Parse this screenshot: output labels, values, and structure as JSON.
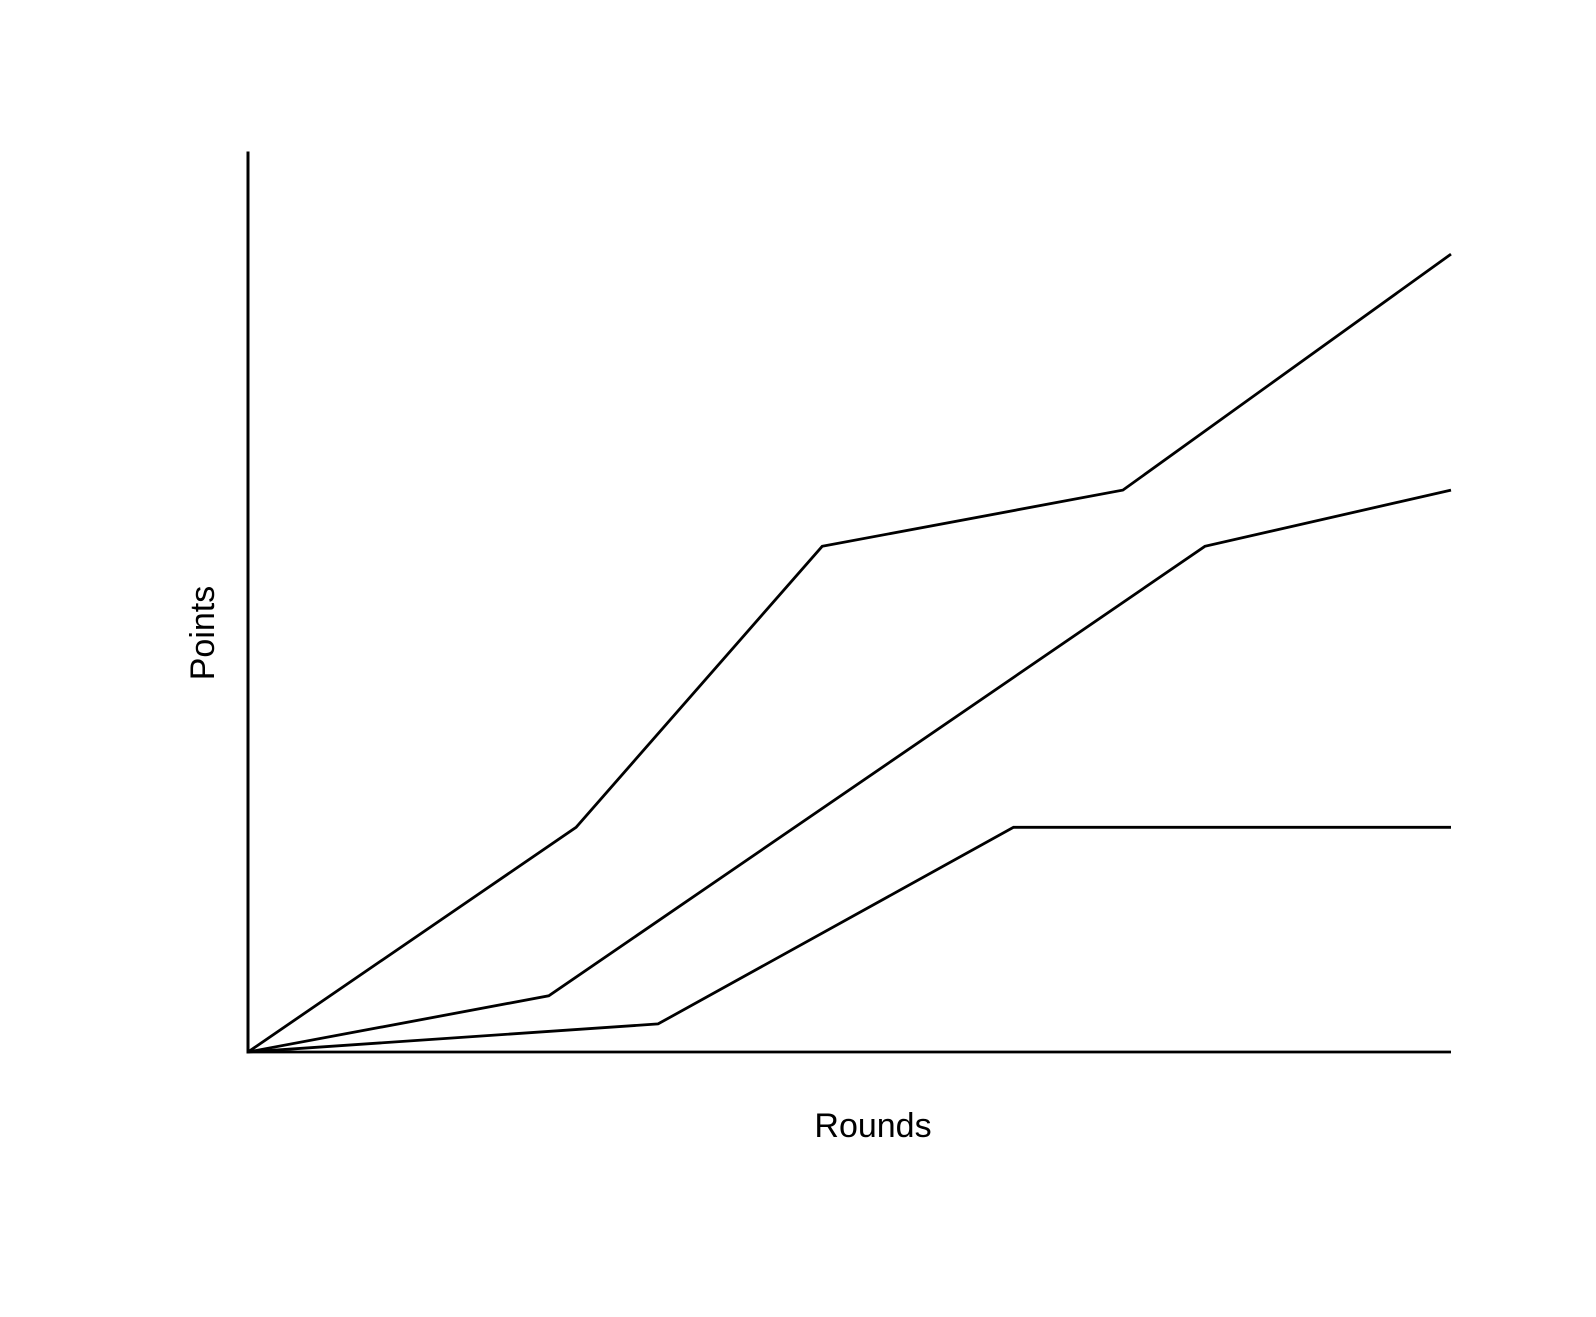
{
  "chart_data": {
    "type": "line",
    "xlabel": "Rounds",
    "ylabel": "Points",
    "xlim": [
      0,
      22
    ],
    "ylim": [
      0,
      16
    ],
    "x_ticks_shown": false,
    "y_ticks_shown": false,
    "grid": false,
    "legend": "none",
    "line_color": "#000000",
    "series": [
      {
        "points": [
          [
            0,
            0
          ],
          [
            6,
            4
          ],
          [
            10.5,
            9
          ],
          [
            16,
            10
          ],
          [
            22,
            14.2
          ]
        ]
      },
      {
        "points": [
          [
            0,
            0
          ],
          [
            5.5,
            1
          ],
          [
            17.5,
            9
          ],
          [
            22,
            10
          ]
        ]
      },
      {
        "points": [
          [
            0,
            0
          ],
          [
            7.5,
            0.5
          ],
          [
            14,
            4
          ],
          [
            22,
            4
          ]
        ]
      },
      {
        "points": [
          [
            0,
            0
          ],
          [
            22,
            0
          ]
        ]
      }
    ]
  }
}
